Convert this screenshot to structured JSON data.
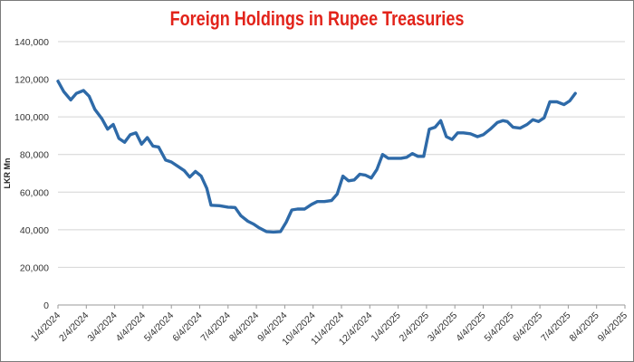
{
  "chart_data": {
    "type": "line",
    "title": "Foreign Holdings in Rupee Treasuries",
    "xlabel": "",
    "ylabel": "LKR Mn",
    "ylim": [
      0,
      140000
    ],
    "yticks": [
      0,
      20000,
      40000,
      60000,
      80000,
      100000,
      120000,
      140000
    ],
    "ytick_labels": [
      "0",
      "20,000",
      "40,000",
      "60,000",
      "80,000",
      "100,000",
      "120,000",
      "140,000"
    ],
    "xtick_labels": [
      "1/4/2024",
      "2/4/2024",
      "3/4/2024",
      "4/4/2024",
      "5/4/2024",
      "6/4/2024",
      "7/4/2024",
      "8/4/2024",
      "9/4/2024",
      "10/4/2024",
      "11/4/2024",
      "12/4/2024",
      "1/4/2025",
      "2/4/2025",
      "3/4/2025",
      "4/4/2025",
      "5/4/2025",
      "6/4/2025",
      "7/4/2025",
      "8/4/2025",
      "9/4/2025"
    ],
    "grid": true,
    "color": "#2e6aa8",
    "series": [
      {
        "name": "",
        "points": [
          [
            0.0,
            119000
          ],
          [
            0.2,
            113500
          ],
          [
            0.45,
            109000
          ],
          [
            0.65,
            112500
          ],
          [
            0.9,
            114000
          ],
          [
            1.1,
            111000
          ],
          [
            1.3,
            104000
          ],
          [
            1.55,
            99000
          ],
          [
            1.75,
            93500
          ],
          [
            1.95,
            96000
          ],
          [
            2.15,
            88500
          ],
          [
            2.35,
            86500
          ],
          [
            2.55,
            90500
          ],
          [
            2.75,
            91500
          ],
          [
            2.95,
            85500
          ],
          [
            3.15,
            89000
          ],
          [
            3.35,
            84500
          ],
          [
            3.55,
            84000
          ],
          [
            3.8,
            77000
          ],
          [
            4.0,
            76000
          ],
          [
            4.25,
            73500
          ],
          [
            4.45,
            71500
          ],
          [
            4.65,
            68000
          ],
          [
            4.85,
            71000
          ],
          [
            5.05,
            68500
          ],
          [
            5.25,
            62000
          ],
          [
            5.4,
            53000
          ],
          [
            5.7,
            52800
          ],
          [
            6.0,
            52000
          ],
          [
            6.25,
            51800
          ],
          [
            6.45,
            47500
          ],
          [
            6.7,
            44500
          ],
          [
            6.9,
            43000
          ],
          [
            7.1,
            41000
          ],
          [
            7.35,
            39000
          ],
          [
            7.6,
            38800
          ],
          [
            7.85,
            39000
          ],
          [
            8.05,
            44000
          ],
          [
            8.25,
            50500
          ],
          [
            8.45,
            51000
          ],
          [
            8.7,
            51000
          ],
          [
            8.95,
            53500
          ],
          [
            9.15,
            55000
          ],
          [
            9.4,
            55000
          ],
          [
            9.65,
            55500
          ],
          [
            9.85,
            59000
          ],
          [
            10.05,
            68500
          ],
          [
            10.25,
            66000
          ],
          [
            10.45,
            66500
          ],
          [
            10.65,
            69500
          ],
          [
            10.85,
            69000
          ],
          [
            11.05,
            67500
          ],
          [
            11.25,
            72000
          ],
          [
            11.45,
            80000
          ],
          [
            11.65,
            78000
          ],
          [
            11.85,
            78000
          ],
          [
            12.1,
            78000
          ],
          [
            12.3,
            78500
          ],
          [
            12.5,
            80500
          ],
          [
            12.7,
            79000
          ],
          [
            12.9,
            79000
          ],
          [
            13.1,
            93500
          ],
          [
            13.3,
            94500
          ],
          [
            13.5,
            98000
          ],
          [
            13.7,
            89500
          ],
          [
            13.9,
            88000
          ],
          [
            14.1,
            91500
          ],
          [
            14.3,
            91500
          ],
          [
            14.55,
            91000
          ],
          [
            14.8,
            89500
          ],
          [
            15.0,
            90500
          ],
          [
            15.25,
            93500
          ],
          [
            15.5,
            97000
          ],
          [
            15.7,
            98000
          ],
          [
            15.85,
            97500
          ],
          [
            16.05,
            94500
          ],
          [
            16.3,
            94000
          ],
          [
            16.55,
            96000
          ],
          [
            16.75,
            98500
          ],
          [
            16.95,
            97500
          ],
          [
            17.15,
            99500
          ],
          [
            17.35,
            108000
          ],
          [
            17.6,
            108000
          ],
          [
            17.85,
            106500
          ],
          [
            18.05,
            108500
          ],
          [
            18.25,
            112500
          ]
        ]
      }
    ]
  }
}
